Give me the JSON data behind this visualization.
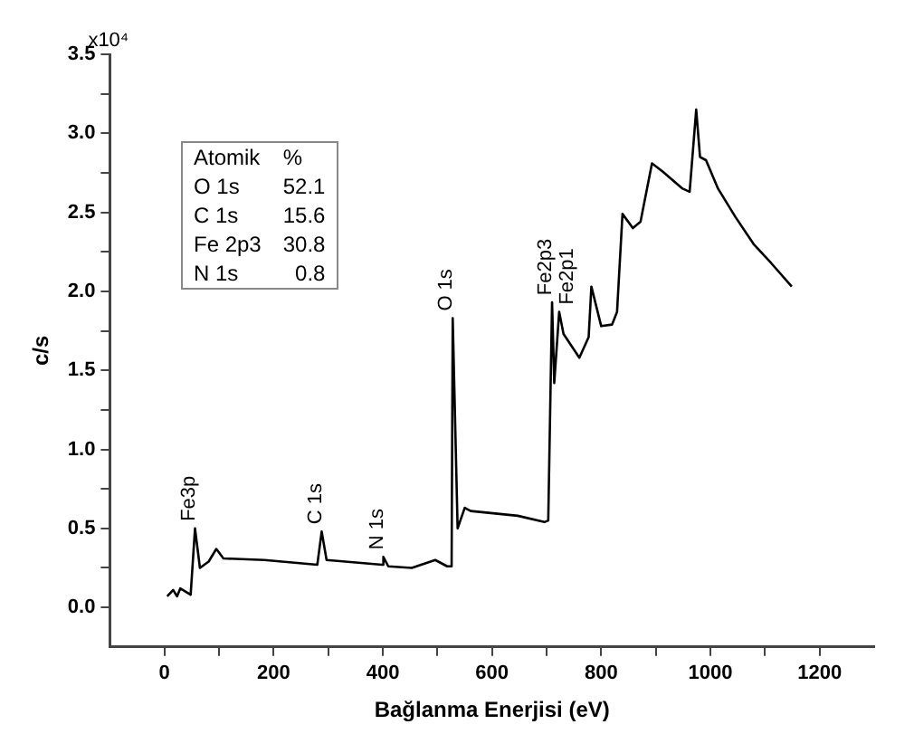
{
  "chart_data": {
    "type": "line",
    "xlabel": "Bağlanma Enerjisi (eV)",
    "ylabel": "c/s",
    "color": "#000000",
    "marker": "none",
    "line_style": "solid",
    "grid": false,
    "legend": false,
    "x": [
      5,
      16,
      23,
      29,
      48,
      56,
      65,
      81,
      95,
      108,
      183,
      280,
      288,
      297,
      399,
      401,
      410,
      453,
      496,
      518,
      526,
      528,
      537,
      550,
      561,
      647,
      696,
      703,
      710,
      714,
      723,
      731,
      760,
      777,
      782,
      800,
      820,
      829,
      839,
      858,
      872,
      893,
      912,
      949,
      962,
      974,
      981,
      992,
      1014,
      1046,
      1079,
      1111,
      1149
    ],
    "values": [
      0.07,
      0.11,
      0.07,
      0.12,
      0.08,
      0.5,
      0.25,
      0.29,
      0.37,
      0.31,
      0.3,
      0.27,
      0.48,
      0.3,
      0.27,
      0.32,
      0.26,
      0.25,
      0.3,
      0.26,
      0.26,
      1.83,
      0.5,
      0.63,
      0.61,
      0.58,
      0.54,
      0.55,
      1.93,
      1.42,
      1.87,
      1.73,
      1.58,
      1.71,
      2.03,
      1.78,
      1.79,
      1.87,
      2.49,
      2.4,
      2.44,
      2.81,
      2.76,
      2.65,
      2.63,
      3.15,
      2.85,
      2.83,
      2.65,
      2.47,
      2.3,
      2.18,
      2.03
    ],
    "xlim": [
      -100,
      1300
    ],
    "xticks": [
      0,
      {
        "value": 100,
        "label": null
      },
      200,
      {
        "value": 300,
        "label": null
      },
      400,
      {
        "value": 500,
        "label": null
      },
      600,
      {
        "value": 700,
        "label": null
      },
      800,
      {
        "value": 900,
        "label": null
      },
      1000,
      {
        "value": 1100,
        "label": null
      },
      1200
    ],
    "ylim": [
      -0.25,
      3.5
    ],
    "yticks": [
      {
        "value": 0,
        "label": "0.0"
      },
      {
        "value": 0.25,
        "label": null
      },
      {
        "value": 0.5,
        "label": "0.5"
      },
      {
        "value": 0.75,
        "label": null
      },
      {
        "value": 1,
        "label": "1.0"
      },
      {
        "value": 1.25,
        "label": null
      },
      {
        "value": 1.5,
        "label": "1.5"
      },
      {
        "value": 1.75,
        "label": null
      },
      {
        "value": 2,
        "label": "2.0"
      },
      {
        "value": 2.25,
        "label": null
      },
      {
        "value": 2.5,
        "label": "2.5"
      },
      {
        "value": 2.75,
        "label": null
      },
      {
        "value": 3,
        "label": "3.0"
      },
      {
        "value": 3.25,
        "label": null
      },
      {
        "value": 3.5,
        "label": "3.5"
      }
    ],
    "annotations": [
      "x10⁴",
      "Atomik",
      "%",
      "O 1s",
      "52.1",
      "C 1s",
      "15.6",
      "Fe 2p3",
      "30.8",
      "N 1s",
      "0.8",
      {
        "text": "Fe3p",
        "x": 56,
        "y": 0.5
      },
      {
        "text": "C 1s",
        "x": 288,
        "y": 0.48
      },
      {
        "text": "N 1s",
        "x": 401,
        "y": 0.32
      },
      {
        "text": "O 1s",
        "x": 528,
        "y": 1.83
      },
      {
        "text": "Fe2p3",
        "x": 710,
        "y": 1.93
      },
      {
        "text": "Fe2p1",
        "x": 723,
        "y": 1.87
      }
    ]
  }
}
